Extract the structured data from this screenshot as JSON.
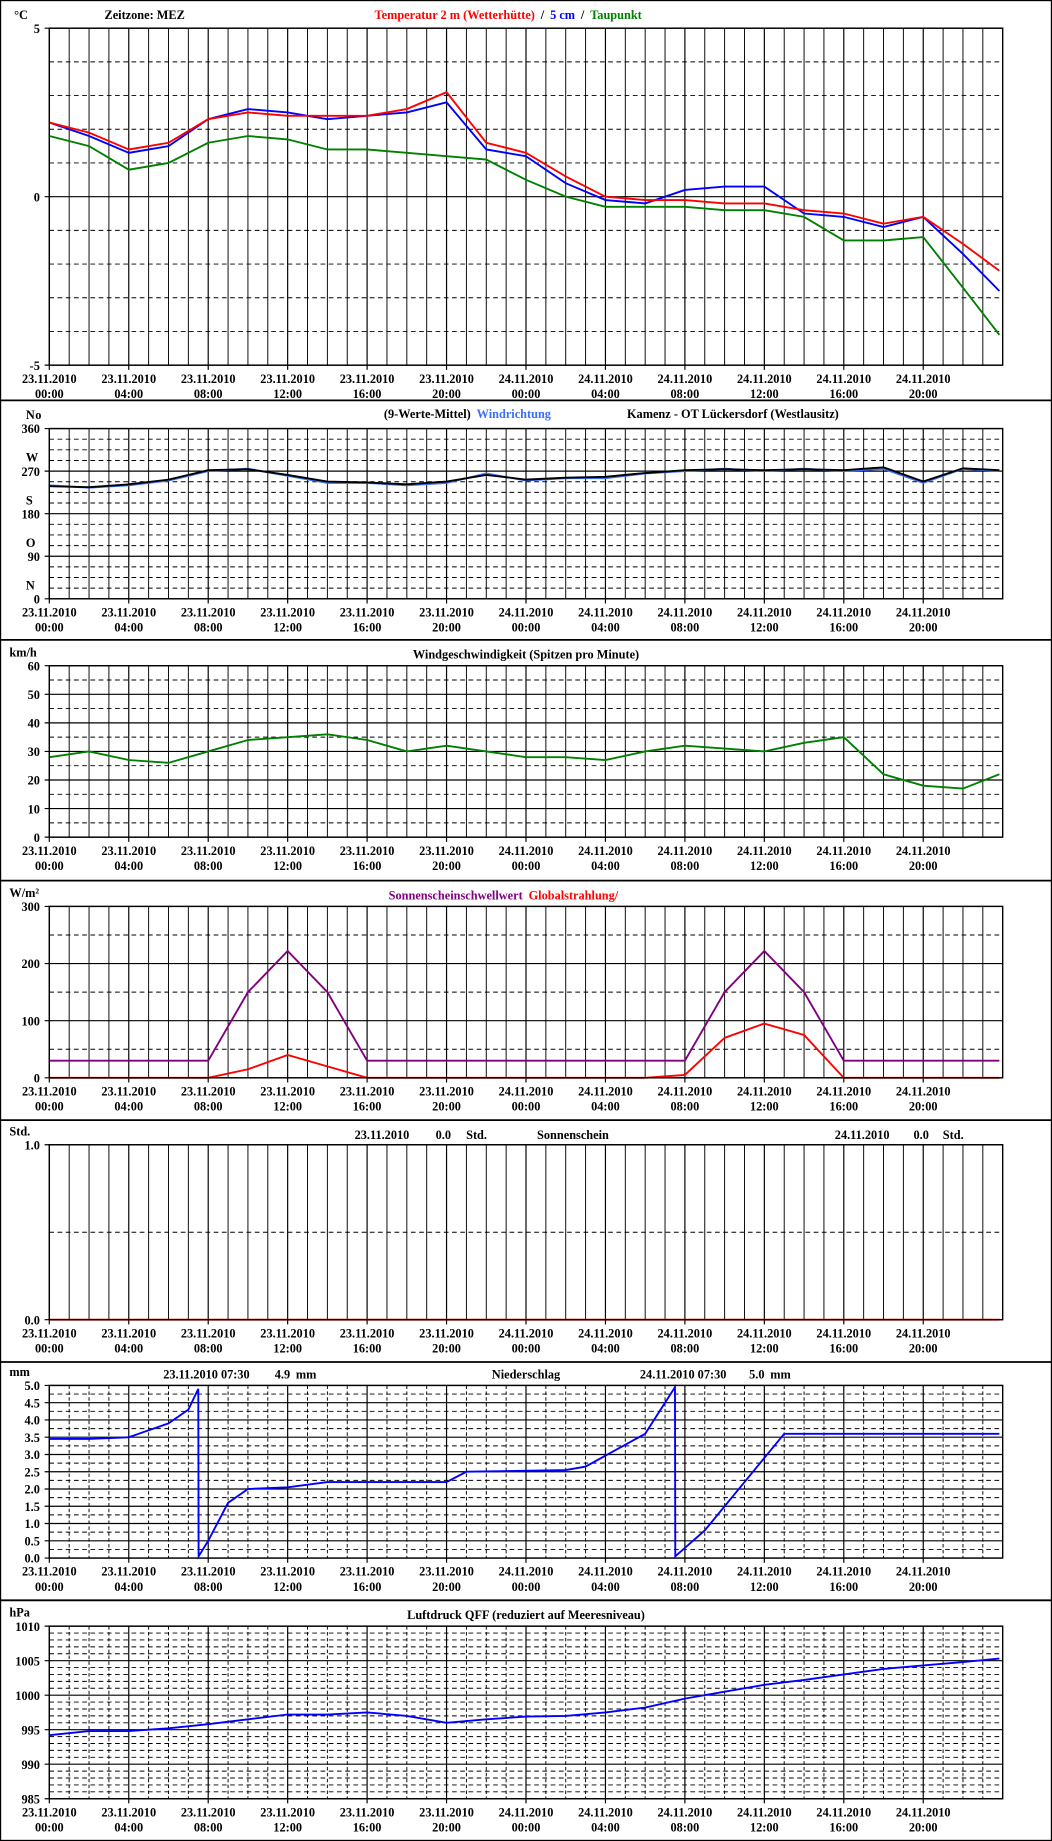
{
  "chart_data": [
    {
      "type": "line",
      "note": "Zeitzone: MEZ",
      "yunit": "°C",
      "separator": "/",
      "xticks": [
        {
          "date": "23.11.2010",
          "time": "00:00"
        },
        {
          "date": "23.11.2010",
          "time": "04:00"
        },
        {
          "date": "23.11.2010",
          "time": "08:00"
        },
        {
          "date": "23.11.2010",
          "time": "12:00"
        },
        {
          "date": "23.11.2010",
          "time": "16:00"
        },
        {
          "date": "23.11.2010",
          "time": "20:00"
        },
        {
          "date": "24.11.2010",
          "time": "00:00"
        },
        {
          "date": "24.11.2010",
          "time": "04:00"
        },
        {
          "date": "24.11.2010",
          "time": "08:00"
        },
        {
          "date": "24.11.2010",
          "time": "12:00"
        },
        {
          "date": "24.11.2010",
          "time": "16:00"
        },
        {
          "date": "24.11.2010",
          "time": "20:00"
        }
      ],
      "ylim": [
        -5,
        5
      ],
      "yticks": [
        -5,
        0,
        5
      ],
      "x": [
        "23.11.2010 00:00",
        "23.11.2010 02:00",
        "23.11.2010 04:00",
        "23.11.2010 06:00",
        "23.11.2010 08:00",
        "23.11.2010 10:00",
        "23.11.2010 12:00",
        "23.11.2010 14:00",
        "23.11.2010 16:00",
        "23.11.2010 18:00",
        "23.11.2010 20:00",
        "23.11.2010 22:00",
        "24.11.2010 00:00",
        "24.11.2010 02:00",
        "24.11.2010 04:00",
        "24.11.2010 06:00",
        "24.11.2010 08:00",
        "24.11.2010 10:00",
        "24.11.2010 12:00",
        "24.11.2010 14:00",
        "24.11.2010 16:00",
        "24.11.2010 18:00",
        "24.11.2010 20:00",
        "24.11.2010 22:00",
        "24.11.2010 23:50"
      ],
      "series": [
        {
          "name": "Taupunkt",
          "color": "#008000",
          "values": [
            1.8,
            1.5,
            0.8,
            1.0,
            1.6,
            1.8,
            1.7,
            1.4,
            1.4,
            1.3,
            1.2,
            1.1,
            0.5,
            0.0,
            -0.3,
            -0.3,
            -0.3,
            -0.4,
            -0.4,
            -0.6,
            -1.3,
            -1.3,
            -1.2,
            -2.7,
            -4.1
          ]
        },
        {
          "name": "5 cm",
          "color": "#0000ff",
          "values": [
            2.2,
            1.8,
            1.3,
            1.5,
            2.3,
            2.6,
            2.5,
            2.3,
            2.4,
            2.5,
            2.8,
            1.4,
            1.2,
            0.4,
            -0.1,
            -0.2,
            0.2,
            0.3,
            0.3,
            -0.5,
            -0.6,
            -0.9,
            -0.6,
            -1.7,
            -2.8
          ]
        },
        {
          "name": "Temperatur 2 m (Wetterhütte)",
          "color": "#ff0000",
          "values": [
            2.2,
            1.9,
            1.4,
            1.6,
            2.3,
            2.5,
            2.4,
            2.4,
            2.4,
            2.6,
            3.1,
            1.6,
            1.3,
            0.6,
            0.0,
            -0.1,
            -0.1,
            -0.2,
            -0.2,
            -0.4,
            -0.5,
            -0.8,
            -0.6,
            -1.4,
            -2.2
          ]
        }
      ]
    },
    {
      "type": "line",
      "note": "Kamenz - OT Lückersdorf (Westlausitz)",
      "yunit": "o",
      "xticks": [
        {
          "date": "23.11.2010",
          "time": "00:00"
        },
        {
          "date": "23.11.2010",
          "time": "04:00"
        },
        {
          "date": "23.11.2010",
          "time": "08:00"
        },
        {
          "date": "23.11.2010",
          "time": "12:00"
        },
        {
          "date": "23.11.2010",
          "time": "16:00"
        },
        {
          "date": "23.11.2010",
          "time": "20:00"
        },
        {
          "date": "24.11.2010",
          "time": "00:00"
        },
        {
          "date": "24.11.2010",
          "time": "04:00"
        },
        {
          "date": "24.11.2010",
          "time": "08:00"
        },
        {
          "date": "24.11.2010",
          "time": "12:00"
        },
        {
          "date": "24.11.2010",
          "time": "16:00"
        },
        {
          "date": "24.11.2010",
          "time": "20:00"
        }
      ],
      "ylim": [
        0,
        360
      ],
      "yticks": [
        0,
        90,
        180,
        270,
        360
      ],
      "ytick_letters": [
        "N",
        "O",
        "S",
        "W",
        "N"
      ],
      "x": [
        "23.11.2010 00:00",
        "23.11.2010 02:00",
        "23.11.2010 04:00",
        "23.11.2010 06:00",
        "23.11.2010 08:00",
        "23.11.2010 10:00",
        "23.11.2010 12:00",
        "23.11.2010 14:00",
        "23.11.2010 16:00",
        "23.11.2010 18:00",
        "23.11.2010 20:00",
        "23.11.2010 22:00",
        "24.11.2010 00:00",
        "24.11.2010 02:00",
        "24.11.2010 04:00",
        "24.11.2010 06:00",
        "24.11.2010 08:00",
        "24.11.2010 10:00",
        "24.11.2010 12:00",
        "24.11.2010 14:00",
        "24.11.2010 16:00",
        "24.11.2010 18:00",
        "24.11.2010 20:00",
        "24.11.2010 22:00",
        "24.11.2010 23:50"
      ],
      "series": [
        {
          "name": "Windrichtung",
          "color": "#3a6fff",
          "values": [
            240,
            235,
            240,
            250,
            270,
            275,
            260,
            245,
            245,
            240,
            245,
            265,
            250,
            255,
            255,
            265,
            270,
            275,
            270,
            275,
            270,
            275,
            245,
            275,
            270
          ]
        },
        {
          "name": "(9-Werte-Mittel)",
          "color": "#000000",
          "values": [
            238,
            236,
            242,
            252,
            272,
            274,
            262,
            248,
            246,
            242,
            248,
            262,
            252,
            256,
            258,
            266,
            272,
            274,
            272,
            274,
            272,
            278,
            248,
            276,
            272
          ]
        }
      ]
    },
    {
      "type": "line",
      "title": "Windgeschwindigkeit (Spitzen pro Minute)",
      "yunit": "km/h",
      "xticks": [
        {
          "date": "23.11.2010",
          "time": "00:00"
        },
        {
          "date": "23.11.2010",
          "time": "04:00"
        },
        {
          "date": "23.11.2010",
          "time": "08:00"
        },
        {
          "date": "23.11.2010",
          "time": "12:00"
        },
        {
          "date": "23.11.2010",
          "time": "16:00"
        },
        {
          "date": "23.11.2010",
          "time": "20:00"
        },
        {
          "date": "24.11.2010",
          "time": "00:00"
        },
        {
          "date": "24.11.2010",
          "time": "04:00"
        },
        {
          "date": "24.11.2010",
          "time": "08:00"
        },
        {
          "date": "24.11.2010",
          "time": "12:00"
        },
        {
          "date": "24.11.2010",
          "time": "16:00"
        },
        {
          "date": "24.11.2010",
          "time": "20:00"
        }
      ],
      "ylim": [
        0,
        60
      ],
      "yticks": [
        0,
        10,
        20,
        30,
        40,
        50,
        60
      ],
      "x": [
        "23.11.2010 00:00",
        "23.11.2010 02:00",
        "23.11.2010 04:00",
        "23.11.2010 06:00",
        "23.11.2010 08:00",
        "23.11.2010 10:00",
        "23.11.2010 12:00",
        "23.11.2010 14:00",
        "23.11.2010 16:00",
        "23.11.2010 18:00",
        "23.11.2010 20:00",
        "23.11.2010 22:00",
        "24.11.2010 00:00",
        "24.11.2010 02:00",
        "24.11.2010 04:00",
        "24.11.2010 06:00",
        "24.11.2010 08:00",
        "24.11.2010 10:00",
        "24.11.2010 12:00",
        "24.11.2010 14:00",
        "24.11.2010 16:00",
        "24.11.2010 18:00",
        "24.11.2010 20:00",
        "24.11.2010 22:00",
        "24.11.2010 23:50"
      ],
      "series": [
        {
          "color": "#008000",
          "values": [
            28,
            30,
            27,
            26,
            30,
            34,
            35,
            36,
            34,
            30,
            32,
            30,
            28,
            28,
            27,
            30,
            32,
            31,
            30,
            33,
            35,
            22,
            18,
            17,
            22
          ]
        }
      ]
    },
    {
      "type": "line",
      "yunit": "W/m²",
      "xticks": [
        {
          "date": "23.11.2010",
          "time": "00:00"
        },
        {
          "date": "23.11.2010",
          "time": "04:00"
        },
        {
          "date": "23.11.2010",
          "time": "08:00"
        },
        {
          "date": "23.11.2010",
          "time": "12:00"
        },
        {
          "date": "23.11.2010",
          "time": "16:00"
        },
        {
          "date": "23.11.2010",
          "time": "20:00"
        },
        {
          "date": "24.11.2010",
          "time": "00:00"
        },
        {
          "date": "24.11.2010",
          "time": "04:00"
        },
        {
          "date": "24.11.2010",
          "time": "08:00"
        },
        {
          "date": "24.11.2010",
          "time": "12:00"
        },
        {
          "date": "24.11.2010",
          "time": "16:00"
        },
        {
          "date": "24.11.2010",
          "time": "20:00"
        }
      ],
      "ylim": [
        0,
        300
      ],
      "yticks": [
        0,
        100,
        200,
        300
      ],
      "x": [
        "23.11.2010 00:00",
        "23.11.2010 02:00",
        "23.11.2010 04:00",
        "23.11.2010 06:00",
        "23.11.2010 08:00",
        "23.11.2010 10:00",
        "23.11.2010 12:00",
        "23.11.2010 14:00",
        "23.11.2010 16:00",
        "23.11.2010 18:00",
        "23.11.2010 20:00",
        "23.11.2010 22:00",
        "24.11.2010 00:00",
        "24.11.2010 02:00",
        "24.11.2010 04:00",
        "24.11.2010 06:00",
        "24.11.2010 08:00",
        "24.11.2010 10:00",
        "24.11.2010 12:00",
        "24.11.2010 14:00",
        "24.11.2010 16:00",
        "24.11.2010 18:00",
        "24.11.2010 20:00",
        "24.11.2010 22:00",
        "24.11.2010 23:50"
      ],
      "series": [
        {
          "name": "Globalstrahlung/",
          "color": "#ff0000",
          "values": [
            0,
            0,
            0,
            0,
            0,
            15,
            40,
            20,
            0,
            0,
            0,
            0,
            0,
            0,
            0,
            0,
            5,
            70,
            95,
            75,
            0,
            0,
            0,
            0,
            0
          ]
        },
        {
          "name": "Sonnenscheinschwellwert",
          "color": "#800080",
          "values": [
            30,
            30,
            30,
            30,
            30,
            150,
            222,
            150,
            30,
            30,
            30,
            30,
            30,
            30,
            30,
            30,
            30,
            150,
            222,
            150,
            30,
            30,
            30,
            30,
            30
          ]
        }
      ]
    },
    {
      "type": "line",
      "title": "Sonnenschein",
      "yunit": "Std.",
      "total_unit": "Std.",
      "totals": [
        {
          "date": "23.11.2010",
          "value": 0,
          "label": "0.0"
        },
        {
          "date": "24.11.2010",
          "value": 0,
          "label": "0.0"
        }
      ],
      "xticks": [
        {
          "date": "23.11.2010",
          "time": "00:00"
        },
        {
          "date": "23.11.2010",
          "time": "04:00"
        },
        {
          "date": "23.11.2010",
          "time": "08:00"
        },
        {
          "date": "23.11.2010",
          "time": "12:00"
        },
        {
          "date": "23.11.2010",
          "time": "16:00"
        },
        {
          "date": "23.11.2010",
          "time": "20:00"
        },
        {
          "date": "24.11.2010",
          "time": "00:00"
        },
        {
          "date": "24.11.2010",
          "time": "04:00"
        },
        {
          "date": "24.11.2010",
          "time": "08:00"
        },
        {
          "date": "24.11.2010",
          "time": "12:00"
        },
        {
          "date": "24.11.2010",
          "time": "16:00"
        },
        {
          "date": "24.11.2010",
          "time": "20:00"
        }
      ],
      "ylim": [
        0,
        1
      ],
      "yticks": [
        {
          "value": 0,
          "label": "0.0"
        },
        {
          "value": 1,
          "label": "1.0"
        }
      ],
      "x": [
        "23.11.2010 00:00",
        "24.11.2010 23:50"
      ],
      "series": [
        {
          "color": "#ff0000",
          "values": [
            0,
            0
          ]
        }
      ]
    },
    {
      "type": "line",
      "title": "Niederschlag",
      "yunit": "mm",
      "total_unit": "mm",
      "totals": [
        {
          "date": "23.11.2010 07:30",
          "value": 4.9,
          "label": "4.9"
        },
        {
          "date": "24.11.2010 07:30",
          "value": 5.0,
          "label": "5.0"
        }
      ],
      "xticks": [
        {
          "date": "23.11.2010",
          "time": "00:00"
        },
        {
          "date": "23.11.2010",
          "time": "04:00"
        },
        {
          "date": "23.11.2010",
          "time": "08:00"
        },
        {
          "date": "23.11.2010",
          "time": "12:00"
        },
        {
          "date": "23.11.2010",
          "time": "16:00"
        },
        {
          "date": "23.11.2010",
          "time": "20:00"
        },
        {
          "date": "24.11.2010",
          "time": "00:00"
        },
        {
          "date": "24.11.2010",
          "time": "04:00"
        },
        {
          "date": "24.11.2010",
          "time": "08:00"
        },
        {
          "date": "24.11.2010",
          "time": "12:00"
        },
        {
          "date": "24.11.2010",
          "time": "16:00"
        },
        {
          "date": "24.11.2010",
          "time": "20:00"
        }
      ],
      "ylim": [
        0,
        5
      ],
      "yticks": [
        {
          "value": 0,
          "label": "0.0"
        },
        {
          "value": 0.5,
          "label": "0.5"
        },
        {
          "value": 1,
          "label": "1.0"
        },
        {
          "value": 1.5,
          "label": "1.5"
        },
        {
          "value": 2,
          "label": "2.0"
        },
        {
          "value": 2.5,
          "label": "2.5"
        },
        {
          "value": 3,
          "label": "3.0"
        },
        {
          "value": 3.5,
          "label": "3.5"
        },
        {
          "value": 4,
          "label": "4.0"
        },
        {
          "value": 4.5,
          "label": "4.5"
        },
        {
          "value": 5,
          "label": "5.0"
        }
      ],
      "x": [
        "23.11.2010 00:00",
        "23.11.2010 02:00",
        "23.11.2010 04:00",
        "23.11.2010 06:00",
        "23.11.2010 07:00",
        "23.11.2010 07:30",
        "23.11.2010 07:31",
        "23.11.2010 08:00",
        "23.11.2010 09:00",
        "23.11.2010 10:00",
        "23.11.2010 12:00",
        "23.11.2010 14:00",
        "23.11.2010 20:00",
        "23.11.2010 21:00",
        "24.11.2010 02:00",
        "24.11.2010 03:00",
        "24.11.2010 06:00",
        "24.11.2010 07:30",
        "24.11.2010 07:31",
        "24.11.2010 09:00",
        "24.11.2010 12:00",
        "24.11.2010 13:00",
        "24.11.2010 23:50"
      ],
      "series": [
        {
          "color": "#0000ff",
          "values": [
            3.45,
            3.45,
            3.5,
            3.9,
            4.3,
            4.9,
            0.05,
            0.5,
            1.6,
            2.0,
            2.05,
            2.2,
            2.2,
            2.5,
            2.55,
            2.65,
            3.6,
            4.95,
            0.05,
            0.8,
            2.9,
            3.6,
            3.6
          ]
        }
      ]
    },
    {
      "type": "line",
      "title": "Luftdruck QFF (reduziert auf Meeresniveau)",
      "yunit": "hPa",
      "xticks": [
        {
          "date": "23.11.2010",
          "time": "00:00"
        },
        {
          "date": "23.11.2010",
          "time": "04:00"
        },
        {
          "date": "23.11.2010",
          "time": "08:00"
        },
        {
          "date": "23.11.2010",
          "time": "12:00"
        },
        {
          "date": "23.11.2010",
          "time": "16:00"
        },
        {
          "date": "23.11.2010",
          "time": "20:00"
        },
        {
          "date": "24.11.2010",
          "time": "00:00"
        },
        {
          "date": "24.11.2010",
          "time": "04:00"
        },
        {
          "date": "24.11.2010",
          "time": "08:00"
        },
        {
          "date": "24.11.2010",
          "time": "12:00"
        },
        {
          "date": "24.11.2010",
          "time": "16:00"
        },
        {
          "date": "24.11.2010",
          "time": "20:00"
        }
      ],
      "ylim": [
        985,
        1010
      ],
      "yticks": [
        985,
        990,
        995,
        1000,
        1005,
        1010
      ],
      "x": [
        "23.11.2010 00:00",
        "23.11.2010 02:00",
        "23.11.2010 04:00",
        "23.11.2010 06:00",
        "23.11.2010 08:00",
        "23.11.2010 10:00",
        "23.11.2010 12:00",
        "23.11.2010 14:00",
        "23.11.2010 16:00",
        "23.11.2010 18:00",
        "23.11.2010 20:00",
        "23.11.2010 22:00",
        "24.11.2010 00:00",
        "24.11.2010 02:00",
        "24.11.2010 04:00",
        "24.11.2010 06:00",
        "24.11.2010 08:00",
        "24.11.2010 10:00",
        "24.11.2010 12:00",
        "24.11.2010 14:00",
        "24.11.2010 16:00",
        "24.11.2010 18:00",
        "24.11.2010 20:00",
        "24.11.2010 22:00",
        "24.11.2010 23:50"
      ],
      "series": [
        {
          "color": "#0000ff",
          "values": [
            994.2,
            994.8,
            994.8,
            995.2,
            995.8,
            996.5,
            997.2,
            997.2,
            997.5,
            997.0,
            996.0,
            996.5,
            996.9,
            997.0,
            997.5,
            998.2,
            999.5,
            1000.5,
            1001.5,
            1002.2,
            1003.0,
            1003.8,
            1004.3,
            1004.8,
            1005.3
          ]
        }
      ]
    }
  ]
}
